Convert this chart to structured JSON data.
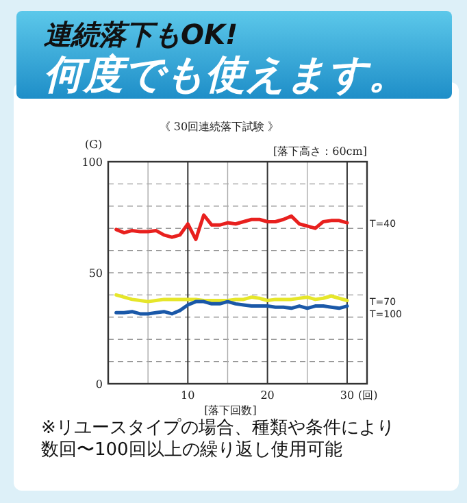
{
  "chart_data": {
    "type": "line",
    "title": "連続落下もOK!",
    "subtitle": "何度でも使えます。",
    "ylabel": "(G)",
    "xlabel": "[落下回数]",
    "annotations": [
      "《 30回連続落下試験 》",
      "[落下高さ：60cm]",
      "(回)",
      "※リユースタイプの場合、種類や条件により数回〜100回以上の繰り返し使用可能"
    ],
    "x": [
      1,
      2,
      3,
      4,
      5,
      6,
      7,
      8,
      9,
      10,
      11,
      12,
      13,
      14,
      15,
      16,
      17,
      18,
      19,
      20,
      21,
      22,
      23,
      24,
      25,
      26,
      27,
      28,
      29,
      30
    ],
    "series": [
      {
        "name": "T=40",
        "color": "#e8201e",
        "values": [
          69.5,
          68,
          69,
          68.5,
          68.5,
          69,
          67,
          66,
          67,
          72,
          65,
          76,
          71.5,
          71.5,
          72.5,
          72,
          73,
          74,
          74,
          73,
          73,
          74,
          75.5,
          72,
          71,
          70,
          73,
          73.5,
          73.5,
          72.5
        ]
      },
      {
        "name": "T=70",
        "color": "#e6e62a",
        "values": [
          40,
          39,
          38,
          37.5,
          37,
          37.5,
          38,
          38,
          38,
          38,
          38,
          37.5,
          37.5,
          37.5,
          37.5,
          38,
          38,
          39,
          38.5,
          37.5,
          38,
          38,
          38,
          38.5,
          39,
          38,
          38.5,
          39.5,
          38.5,
          37.5
        ]
      },
      {
        "name": "T=100",
        "color": "#1a58a8",
        "values": [
          32,
          32,
          32.5,
          31.5,
          31.5,
          32,
          32.5,
          31.5,
          33,
          35.5,
          37,
          37,
          36,
          36,
          37,
          36,
          35.5,
          35,
          35,
          35,
          34.5,
          34.5,
          34,
          35,
          34,
          35,
          35,
          34.5,
          34,
          35
        ]
      }
    ],
    "xlim": [
      0,
      32.5
    ],
    "ylim": [
      0,
      100
    ],
    "xticks": [
      {
        "value": 5,
        "label": null
      },
      10,
      {
        "value": 15,
        "label": null
      },
      20,
      {
        "value": 25,
        "label": null
      },
      30
    ],
    "yticks": [
      0,
      {
        "value": 10,
        "label": null
      },
      {
        "value": 20,
        "label": null
      },
      {
        "value": 30,
        "label": null
      },
      {
        "value": 40,
        "label": null
      },
      50,
      {
        "value": 60,
        "label": null
      },
      {
        "value": 70,
        "label": null
      },
      {
        "value": 80,
        "label": null
      },
      {
        "value": 90,
        "label": null
      },
      100
    ],
    "grid": true
  }
}
